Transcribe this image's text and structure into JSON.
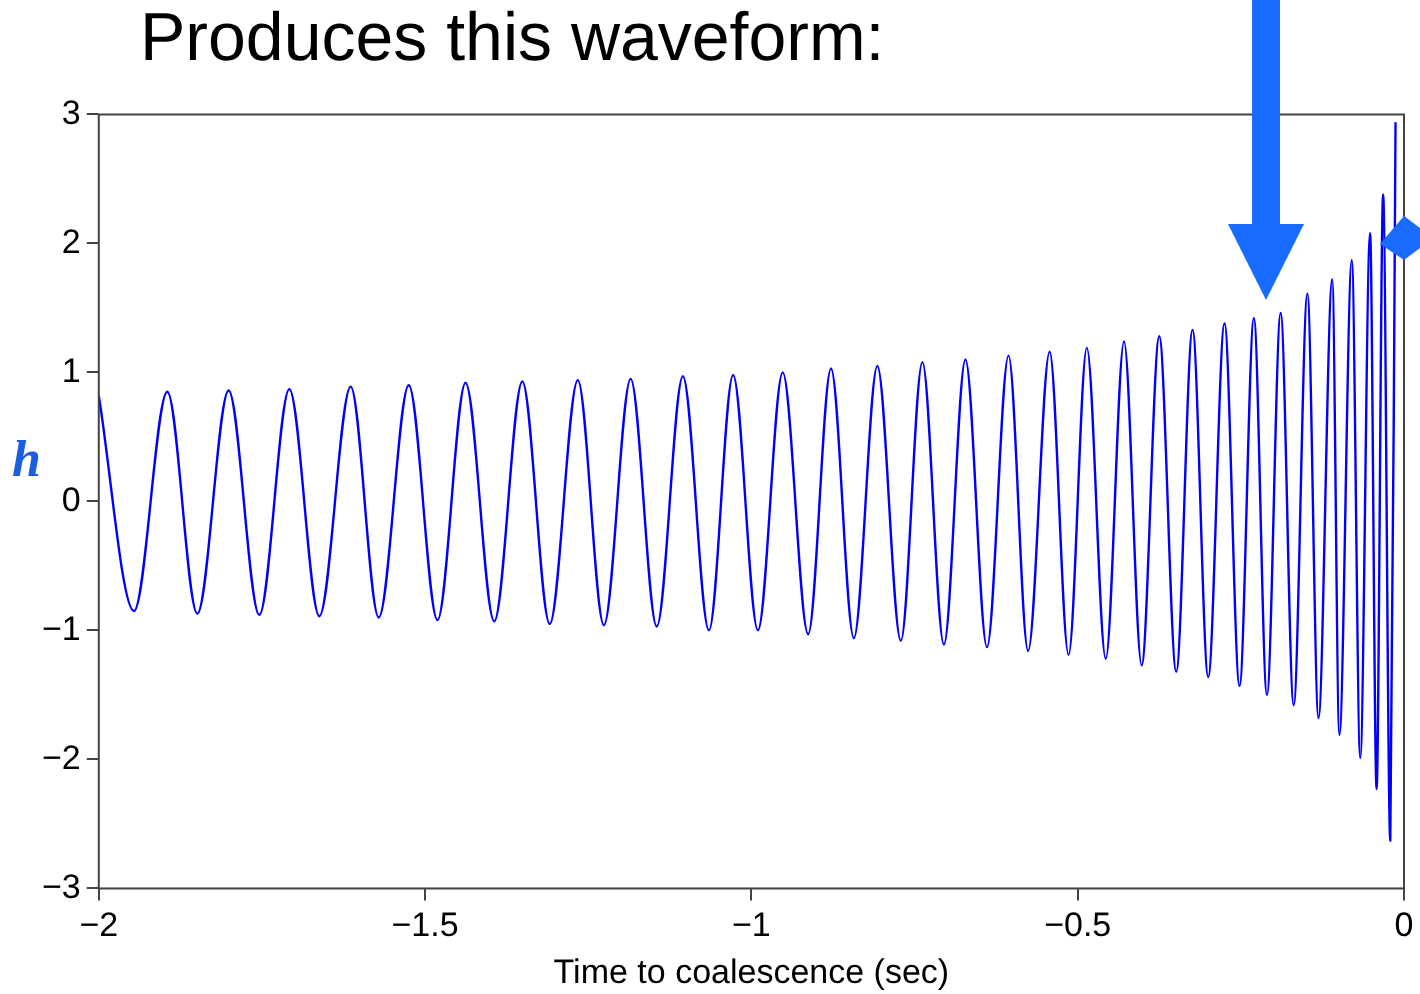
{
  "chart_data": {
    "type": "line",
    "title": "Produces this waveform:",
    "xlabel": "Time to coalescence (sec)",
    "ylabel": "h",
    "xlim": [
      -2,
      0
    ],
    "xticks": [
      -2,
      -1.5,
      -1,
      -0.5,
      0
    ],
    "ylim": [
      -3,
      3
    ],
    "yticks": [
      -3,
      -2,
      -1,
      0,
      1,
      2,
      3
    ],
    "grid": false,
    "legend": false,
    "marker": "none",
    "line_style": "solid",
    "series": [
      {
        "color": "#0000ff",
        "x": [
          -2.0,
          -1.946,
          -1.895,
          -1.849,
          -1.801,
          -1.754,
          -1.708,
          -1.662,
          -1.614,
          -1.571,
          -1.525,
          -1.481,
          -1.438,
          -1.394,
          -1.351,
          -1.309,
          -1.266,
          -1.226,
          -1.185,
          -1.145,
          -1.105,
          -1.065,
          -1.028,
          -0.99,
          -0.952,
          -0.913,
          -0.878,
          -0.843,
          -0.807,
          -0.771,
          -0.738,
          -0.705,
          -0.672,
          -0.639,
          -0.606,
          -0.576,
          -0.543,
          -0.514,
          -0.486,
          -0.457,
          -0.429,
          -0.402,
          -0.375,
          -0.349,
          -0.324,
          -0.3,
          -0.275,
          -0.252,
          -0.23,
          -0.21,
          -0.189,
          -0.169,
          -0.148,
          -0.131,
          -0.11,
          -0.099,
          -0.08,
          -0.067,
          -0.052,
          -0.042,
          -0.032,
          -0.021,
          -0.013
        ],
        "values": [
          0.82,
          -0.85,
          0.85,
          -0.87,
          0.86,
          -0.88,
          0.87,
          -0.89,
          0.89,
          -0.9,
          0.9,
          -0.92,
          0.92,
          -0.93,
          0.93,
          -0.95,
          0.94,
          -0.96,
          0.95,
          -0.97,
          0.97,
          -1.0,
          0.98,
          -1.0,
          1.0,
          -1.03,
          1.03,
          -1.06,
          1.05,
          -1.08,
          1.08,
          -1.11,
          1.1,
          -1.13,
          1.13,
          -1.16,
          1.16,
          -1.19,
          1.19,
          -1.22,
          1.24,
          -1.27,
          1.28,
          -1.32,
          1.33,
          -1.36,
          1.38,
          -1.43,
          1.42,
          -1.5,
          1.46,
          -1.58,
          1.61,
          -1.68,
          1.72,
          -1.81,
          1.87,
          -1.99,
          2.08,
          -2.23,
          2.38,
          -2.63,
          2.94
        ]
      }
    ]
  }
}
